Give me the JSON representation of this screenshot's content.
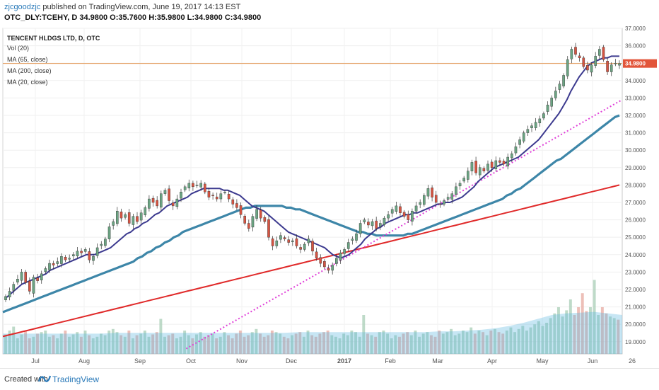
{
  "header": {
    "author": "zjcgoodzjc",
    "published": " published on TradingView.com, June 19, 2017 14:13 EST",
    "ohlc": "OTC_DLY:TCEHY, D 34.9800 O:35.7600 H:35.9800 L:34.9800 C:34.9800"
  },
  "legend": {
    "title": "TENCENT HLDGS LTD, D, OTC",
    "items": [
      "Vol (20)",
      "MA (65, close)",
      "MA (200, close)",
      "MA (20, close)"
    ]
  },
  "footer": {
    "created": "Created with",
    "brand": "TradingView"
  },
  "chart_data": {
    "type": "candlestick",
    "price_axis": {
      "ticks": [
        "37.0000",
        "36.0000",
        "35.0000",
        "34.0000",
        "33.0000",
        "32.0000",
        "31.0000",
        "30.0000",
        "29.0000",
        "28.0000",
        "27.0000",
        "26.0000",
        "25.0000",
        "24.0000",
        "23.0000",
        "22.0000",
        "21.0000",
        "20.0000",
        "19.0000"
      ],
      "range": [
        18.3,
        37.0
      ],
      "last_price_label": "34.9800",
      "last_price": 34.98
    },
    "time_axis": {
      "labels": [
        "Jul",
        "Aug",
        "Sep",
        "Oct",
        "Nov",
        "Dec",
        "2017",
        "Feb",
        "Mar",
        "Apr",
        "May",
        "Jun",
        "26"
      ]
    },
    "colors": {
      "up": "#6ba583",
      "down": "#d75442",
      "ma20": "#3c3a8f",
      "ma65": "#3d86a8",
      "ma200": "#e02a2a",
      "trend": "#e040d8",
      "price_line": "#e08a3c"
    },
    "close_series": [
      21.6,
      21.9,
      22.3,
      22.6,
      23.0,
      22.4,
      21.9,
      22.7,
      22.5,
      22.9,
      23.2,
      23.5,
      23.4,
      23.6,
      23.9,
      23.7,
      23.8,
      24.0,
      24.2,
      24.1,
      24.3,
      23.7,
      23.9,
      24.4,
      24.6,
      24.9,
      25.6,
      25.9,
      26.5,
      26.1,
      26.3,
      25.8,
      26.2,
      25.9,
      26.4,
      26.7,
      27.2,
      27.0,
      26.8,
      27.5,
      27.7,
      27.1,
      26.8,
      27.2,
      27.6,
      27.9,
      28.1,
      27.9,
      28.0,
      28.1,
      27.6,
      27.3,
      27.4,
      27.2,
      27.5,
      27.6,
      27.2,
      26.9,
      26.7,
      26.3,
      25.8,
      25.5,
      26.2,
      26.6,
      26.1,
      25.9,
      25.0,
      24.5,
      24.8,
      25.1,
      24.9,
      24.7,
      24.8,
      24.5,
      24.3,
      24.6,
      24.9,
      24.2,
      23.8,
      23.5,
      23.3,
      23.1,
      23.4,
      23.8,
      24.1,
      24.3,
      24.7,
      24.9,
      25.2,
      25.8,
      26.0,
      25.7,
      25.9,
      25.5,
      25.8,
      26.1,
      26.3,
      26.6,
      26.8,
      26.4,
      26.2,
      26.0,
      26.5,
      26.8,
      27.0,
      27.4,
      27.8,
      27.3,
      27.0,
      26.9,
      27.1,
      27.3,
      27.5,
      27.9,
      28.1,
      28.4,
      28.8,
      29.3,
      28.7,
      29.0,
      28.8,
      29.2,
      29.0,
      29.4,
      29.3,
      29.2,
      29.6,
      29.8,
      30.2,
      30.6,
      31.0,
      31.2,
      31.4,
      31.6,
      31.8,
      32.1,
      32.6,
      33.0,
      33.4,
      33.8,
      34.3,
      35.2,
      35.8,
      35.5,
      35.3,
      34.8,
      34.6,
      34.9,
      35.4,
      35.8,
      35.2,
      34.5,
      34.9,
      35.0,
      34.98
    ],
    "ma20_series": [
      21.5,
      21.7,
      21.9,
      22.1,
      22.3,
      22.4,
      22.5,
      22.6,
      22.7,
      22.8,
      22.9,
      23.1,
      23.2,
      23.3,
      23.4,
      23.5,
      23.6,
      23.7,
      23.8,
      23.9,
      24.0,
      24.0,
      24.0,
      24.1,
      24.2,
      24.3,
      24.4,
      24.6,
      24.8,
      25.0,
      25.2,
      25.3,
      25.5,
      25.6,
      25.8,
      25.9,
      26.1,
      26.3,
      26.4,
      26.6,
      26.8,
      26.9,
      27.0,
      27.1,
      27.2,
      27.3,
      27.5,
      27.6,
      27.7,
      27.8,
      27.8,
      27.8,
      27.8,
      27.8,
      27.7,
      27.7,
      27.6,
      27.5,
      27.4,
      27.2,
      27.0,
      26.8,
      26.7,
      26.6,
      26.5,
      26.3,
      26.1,
      25.9,
      25.7,
      25.5,
      25.3,
      25.2,
      25.1,
      25.0,
      24.9,
      24.8,
      24.7,
      24.6,
      24.5,
      24.4,
      24.2,
      24.0,
      23.9,
      23.8,
      23.9,
      24.0,
      24.2,
      24.4,
      24.6,
      24.9,
      25.1,
      25.3,
      25.5,
      25.6,
      25.8,
      25.9,
      26.0,
      26.1,
      26.2,
      26.3,
      26.3,
      26.4,
      26.4,
      26.5,
      26.6,
      26.7,
      26.8,
      26.9,
      26.9,
      27.0,
      27.0,
      27.1,
      27.2,
      27.3,
      27.5,
      27.7,
      27.9,
      28.2,
      28.4,
      28.6,
      28.8,
      29.0,
      29.1,
      29.2,
      29.3,
      29.4,
      29.5,
      29.6,
      29.8,
      30.0,
      30.2,
      30.4,
      30.6,
      30.9,
      31.2,
      31.5,
      31.8,
      32.1,
      32.5,
      32.9,
      33.4,
      33.8,
      34.2,
      34.5,
      34.8,
      35.0,
      35.1,
      35.2,
      35.3,
      35.3,
      35.4,
      35.4,
      35.4
    ],
    "ma65_series": [
      20.7,
      20.8,
      20.9,
      21.0,
      21.1,
      21.2,
      21.3,
      21.4,
      21.5,
      21.6,
      21.7,
      21.8,
      21.9,
      22.0,
      22.1,
      22.2,
      22.3,
      22.4,
      22.5,
      22.6,
      22.7,
      22.8,
      22.9,
      23.0,
      23.1,
      23.2,
      23.3,
      23.4,
      23.5,
      23.6,
      23.8,
      23.9,
      24.1,
      24.2,
      24.4,
      24.5,
      24.7,
      24.8,
      25.0,
      25.1,
      25.3,
      25.4,
      25.5,
      25.6,
      25.7,
      25.8,
      25.9,
      26.0,
      26.1,
      26.2,
      26.3,
      26.4,
      26.5,
      26.6,
      26.7,
      26.7,
      26.8,
      26.8,
      26.8,
      26.8,
      26.8,
      26.8,
      26.8,
      26.7,
      26.7,
      26.6,
      26.6,
      26.5,
      26.4,
      26.3,
      26.2,
      26.1,
      26.0,
      25.9,
      25.8,
      25.7,
      25.6,
      25.5,
      25.4,
      25.3,
      25.3,
      25.2,
      25.2,
      25.1,
      25.1,
      25.1,
      25.1,
      25.1,
      25.1,
      25.1,
      25.2,
      25.2,
      25.3,
      25.4,
      25.5,
      25.6,
      25.7,
      25.8,
      25.9,
      26.0,
      26.1,
      26.2,
      26.3,
      26.4,
      26.5,
      26.6,
      26.7,
      26.8,
      26.9,
      27.0,
      27.1,
      27.2,
      27.4,
      27.5,
      27.7,
      27.8,
      28.0,
      28.2,
      28.4,
      28.6,
      28.8,
      29.0,
      29.2,
      29.4,
      29.5,
      29.7,
      29.9,
      30.1,
      30.3,
      30.5,
      30.7,
      30.9,
      31.1,
      31.3,
      31.5,
      31.7,
      31.9,
      32.0
    ],
    "ma200_series": [
      19.3,
      19.4,
      19.5,
      19.6,
      19.7,
      19.8,
      19.9,
      20.0,
      20.1,
      20.2,
      20.3,
      20.4,
      20.5,
      20.6,
      20.7,
      20.8,
      20.9,
      21.0,
      21.1,
      21.2,
      21.3,
      21.4,
      21.5,
      21.6,
      21.7,
      21.8,
      21.9,
      22.0,
      22.1,
      22.2,
      22.3,
      22.4,
      22.5,
      22.6,
      22.7,
      22.8,
      22.9,
      23.0,
      23.1,
      23.2,
      23.3,
      23.4,
      23.5,
      23.6,
      23.7,
      23.8,
      23.9,
      24.0,
      24.1,
      24.2,
      24.3,
      24.4,
      24.5,
      24.6,
      24.7,
      24.8,
      24.9,
      25.0,
      25.1,
      25.2,
      25.3,
      25.4,
      25.5,
      25.6,
      25.7,
      25.8,
      25.9,
      26.0,
      26.1,
      26.2,
      26.3,
      26.4,
      26.5,
      26.6,
      26.7,
      26.8,
      26.9,
      27.0,
      27.1,
      27.2,
      27.3,
      27.4,
      27.5,
      27.6,
      27.7,
      27.8,
      27.9,
      28.0
    ],
    "trendline": {
      "x_start_frac": 0.296,
      "x_end_frac": 1.0,
      "y_start": 18.6,
      "y_end": 32.9
    },
    "volume": {
      "relative_heights": [
        0.25,
        0.3,
        0.35,
        0.2,
        0.25,
        0.3,
        0.2,
        0.22,
        0.26,
        0.28,
        0.3,
        0.22,
        0.24,
        0.2,
        0.26,
        0.3,
        0.22,
        0.25,
        0.28,
        0.22,
        0.3,
        0.24,
        0.2,
        0.22,
        0.26,
        0.24,
        0.3,
        0.32,
        0.28,
        0.24,
        0.22,
        0.3,
        0.2,
        0.24,
        0.26,
        0.3,
        0.22,
        0.25,
        0.28,
        0.45,
        0.22,
        0.24,
        0.26,
        0.2,
        0.22,
        0.3,
        0.24,
        0.2,
        0.25,
        0.28,
        0.22,
        0.24,
        0.26,
        0.2,
        0.22,
        0.28,
        0.24,
        0.2,
        0.26,
        0.3,
        0.22,
        0.24,
        0.28,
        0.32,
        0.26,
        0.22,
        0.24,
        0.3,
        0.28,
        0.26,
        0.22,
        0.2,
        0.24,
        0.26,
        0.28,
        0.22,
        0.3,
        0.24,
        0.22,
        0.26,
        0.28,
        0.3,
        0.24,
        0.22,
        0.2,
        0.26,
        0.24,
        0.3,
        0.28,
        0.22,
        0.5,
        0.26,
        0.24,
        0.22,
        0.28,
        0.3,
        0.26,
        0.2,
        0.24,
        0.22,
        0.26,
        0.28,
        0.24,
        0.3,
        0.22,
        0.26,
        0.28,
        0.24,
        0.22,
        0.3,
        0.26,
        0.28,
        0.32,
        0.24,
        0.26,
        0.3,
        0.28,
        0.34,
        0.26,
        0.3,
        0.28,
        0.24,
        0.3,
        0.32,
        0.28,
        0.26,
        0.3,
        0.34,
        0.28,
        0.32,
        0.36,
        0.3,
        0.34,
        0.38,
        0.42,
        0.36,
        0.4,
        0.46,
        0.52,
        0.6,
        0.48,
        0.56,
        0.7,
        0.5,
        0.6,
        0.78,
        0.55,
        0.6,
        0.95,
        0.5,
        0.6,
        0.52,
        0.48,
        0.46,
        0.44
      ],
      "avg_rel": [
        0.26,
        0.26,
        0.26,
        0.26,
        0.26,
        0.26,
        0.26,
        0.26,
        0.27,
        0.27,
        0.27,
        0.27,
        0.27,
        0.27,
        0.27,
        0.27,
        0.27,
        0.27,
        0.27,
        0.27,
        0.27,
        0.28,
        0.28,
        0.28,
        0.28,
        0.28,
        0.28,
        0.28,
        0.28,
        0.28,
        0.28,
        0.29,
        0.29,
        0.3,
        0.31,
        0.33,
        0.36,
        0.4,
        0.45,
        0.5,
        0.52,
        0.53,
        0.54,
        0.52,
        0.5
      ]
    }
  }
}
